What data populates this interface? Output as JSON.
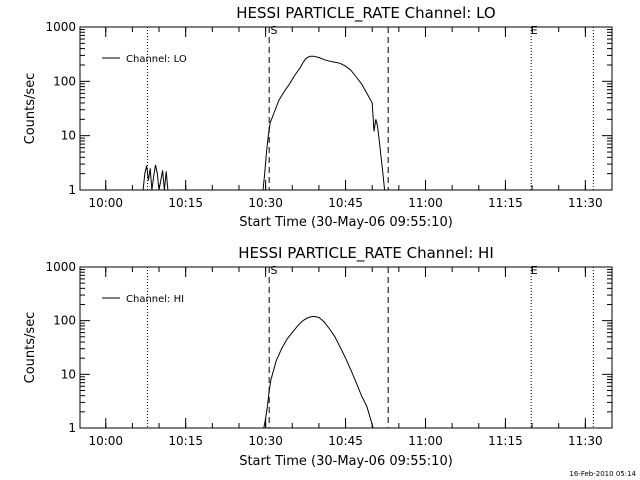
{
  "chart_data": [
    {
      "type": "line",
      "title": "HESSI PARTICLE_RATE Channel: LO",
      "xlabel": "Start Time (30-May-06 09:55:10)",
      "ylabel": "Counts/sec",
      "yscale": "log",
      "ylim": [
        1,
        1000
      ],
      "xlim": [
        "09:55:10",
        "11:35:00"
      ],
      "xticks": [
        "10:00",
        "10:15",
        "10:30",
        "10:45",
        "11:00",
        "11:15",
        "11:30"
      ],
      "yticks": [
        "1",
        "10",
        "100",
        "1000"
      ],
      "legend": {
        "label": "Channel: LO",
        "position": "top-left"
      },
      "markers": [
        {
          "label": "S",
          "time": "10:31:00"
        },
        {
          "label": "E",
          "time": "11:19:50"
        }
      ],
      "dashed_lines": [
        "10:30:40",
        "10:53:00"
      ],
      "dotted_lines": [
        "10:07:50",
        "11:19:50",
        "11:31:30"
      ],
      "series": [
        {
          "x": [
            "10:07:00",
            "10:07:20",
            "10:07:40",
            "10:08:00",
            "10:08:20",
            "10:08:40",
            "10:09:00",
            "10:09:20",
            "10:09:40",
            "10:10:00",
            "10:10:20",
            "10:10:40",
            "10:11:00",
            "10:11:20",
            "10:11:40",
            "10:29:30",
            "10:29:50",
            "10:30:10",
            "10:30:30",
            "10:30:50",
            "10:31:30",
            "10:32:30",
            "10:33:30",
            "10:34:30",
            "10:35:30",
            "10:36:30",
            "10:37:00",
            "10:37:30",
            "10:38:00",
            "10:38:30",
            "10:39:00",
            "10:40:00",
            "10:41:00",
            "10:42:00",
            "10:43:00",
            "10:44:00",
            "10:45:00",
            "10:46:00",
            "10:47:00",
            "10:48:00",
            "10:49:00",
            "10:50:00",
            "10:50:20",
            "10:50:40",
            "10:51:00",
            "10:51:20",
            "10:51:40",
            "10:52:00",
            "10:52:20"
          ],
          "y": [
            1,
            2,
            2.8,
            1.5,
            2.5,
            1,
            1.8,
            2.9,
            2,
            1,
            1.5,
            2.3,
            1,
            2.2,
            1,
            1,
            2,
            5,
            10,
            17,
            25,
            45,
            65,
            90,
            130,
            180,
            220,
            260,
            280,
            290,
            290,
            275,
            250,
            235,
            225,
            215,
            190,
            160,
            120,
            90,
            60,
            40,
            12,
            20,
            15,
            8,
            4,
            2,
            1
          ]
        }
      ]
    },
    {
      "type": "line",
      "title": "HESSI PARTICLE_RATE Channel: HI",
      "xlabel": "Start Time (30-May-06 09:55:10)",
      "ylabel": "Counts/sec",
      "yscale": "log",
      "ylim": [
        1,
        1000
      ],
      "xlim": [
        "09:55:10",
        "11:35:00"
      ],
      "xticks": [
        "10:00",
        "10:15",
        "10:30",
        "10:45",
        "11:00",
        "11:15",
        "11:30"
      ],
      "yticks": [
        "1",
        "10",
        "100",
        "1000"
      ],
      "legend": {
        "label": "Channel: HI",
        "position": "top-left"
      },
      "markers": [
        {
          "label": "S",
          "time": "10:31:00"
        },
        {
          "label": "E",
          "time": "11:19:50"
        }
      ],
      "dashed_lines": [
        "10:30:40",
        "10:53:00"
      ],
      "dotted_lines": [
        "10:07:50",
        "11:19:50",
        "11:31:30"
      ],
      "series": [
        {
          "x": [
            "10:29:40",
            "10:30:00",
            "10:30:20",
            "10:30:40",
            "10:31:00",
            "10:31:30",
            "10:32:00",
            "10:33:00",
            "10:34:00",
            "10:35:00",
            "10:36:00",
            "10:37:00",
            "10:38:00",
            "10:39:00",
            "10:40:00",
            "10:41:00",
            "10:42:00",
            "10:43:00",
            "10:44:00",
            "10:45:00",
            "10:46:00",
            "10:47:00",
            "10:48:00",
            "10:49:00",
            "10:49:40",
            "10:50:10"
          ],
          "y": [
            1,
            1.5,
            2.5,
            5,
            8,
            12,
            18,
            30,
            45,
            60,
            80,
            100,
            115,
            120,
            115,
            95,
            70,
            50,
            32,
            20,
            12,
            7,
            4,
            2.5,
            1.5,
            1
          ]
        }
      ]
    }
  ],
  "footer": {
    "timestamp": "16-Feb-2010 05:14"
  }
}
